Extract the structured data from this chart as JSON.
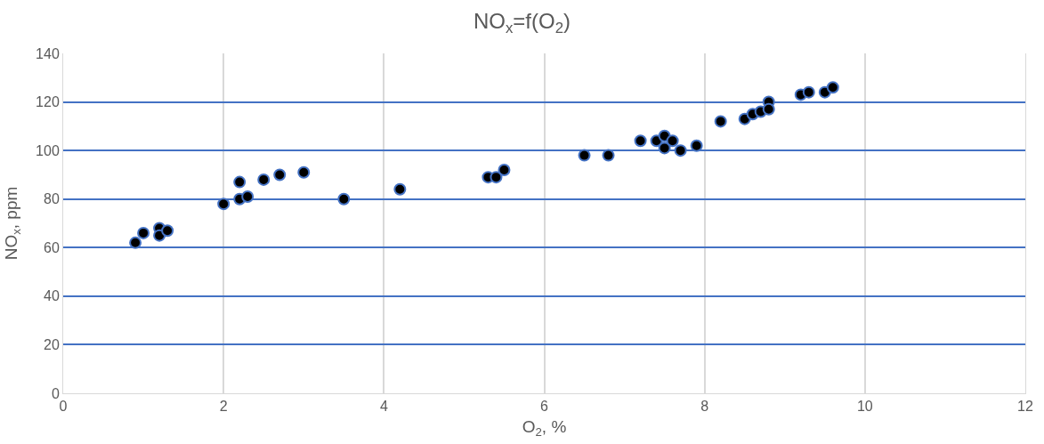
{
  "chart_data": {
    "type": "scatter",
    "title": "NO$_{x}$=f(O$_{2}$)",
    "xlabel": "O$_{2}$, %",
    "ylabel": "NO$_{x}$, ppm",
    "x": [
      0.9,
      1.0,
      1.2,
      1.2,
      1.3,
      2.0,
      2.2,
      2.2,
      2.3,
      2.5,
      2.7,
      3.0,
      3.5,
      4.2,
      5.3,
      5.4,
      5.5,
      6.5,
      6.8,
      7.2,
      7.4,
      7.5,
      7.5,
      7.6,
      7.7,
      7.9,
      8.2,
      8.5,
      8.6,
      8.7,
      8.8,
      8.8,
      9.2,
      9.3,
      9.5,
      9.6
    ],
    "values": [
      62,
      66,
      68,
      65,
      67,
      78,
      87,
      80,
      81,
      88,
      90,
      91,
      80,
      84,
      89,
      89,
      92,
      98,
      98,
      104,
      104,
      106,
      101,
      104,
      100,
      102,
      112,
      113,
      115,
      116,
      120,
      117,
      123,
      124,
      124,
      126
    ],
    "color": "#000000",
    "marker": "circle",
    "xlim": [
      0,
      12
    ],
    "xticks": [
      0,
      2,
      4,
      6,
      8,
      10,
      12
    ],
    "ylim": [
      0,
      140
    ],
    "yticks": [
      0,
      20,
      40,
      60,
      80,
      100,
      120,
      140
    ],
    "grid": true,
    "legend": false
  }
}
